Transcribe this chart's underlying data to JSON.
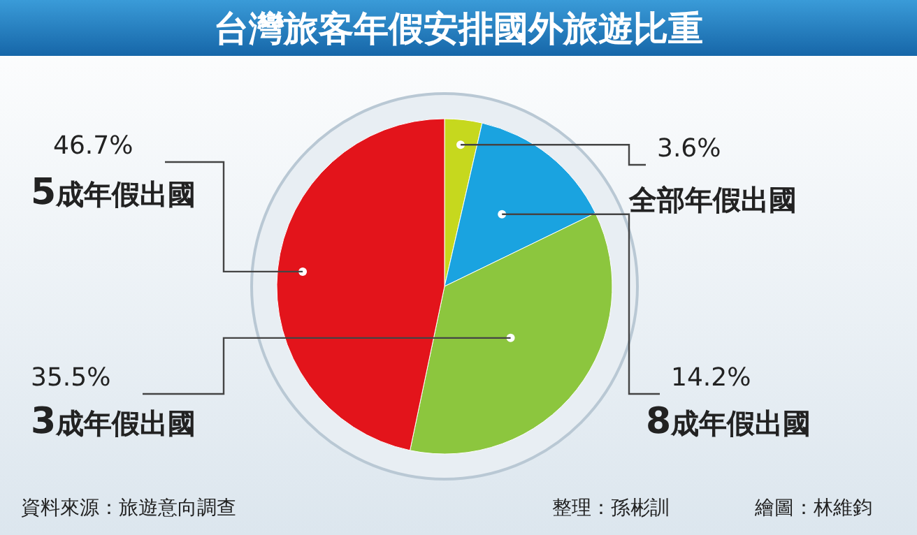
{
  "chart_data": {
    "type": "pie",
    "title": "台灣旅客年假安排國外旅遊比重",
    "categories": [
      "全部年假出國",
      "**8**成年假出國",
      "**3**成年假出國",
      "**5**成年假出國"
    ],
    "values": [
      3.6,
      14.2,
      35.5,
      46.7
    ],
    "colors": [
      "#c6d81e",
      "#1aa3e0",
      "#8cc63e",
      "#e3141b"
    ],
    "value_labels": [
      "3.6%",
      "14.2%",
      "35.5%",
      "46.7%"
    ],
    "annotations": [
      "資料來源：旅遊意向調查",
      "整理：孫彬訓",
      "繪圖：林維鈞"
    ]
  }
}
